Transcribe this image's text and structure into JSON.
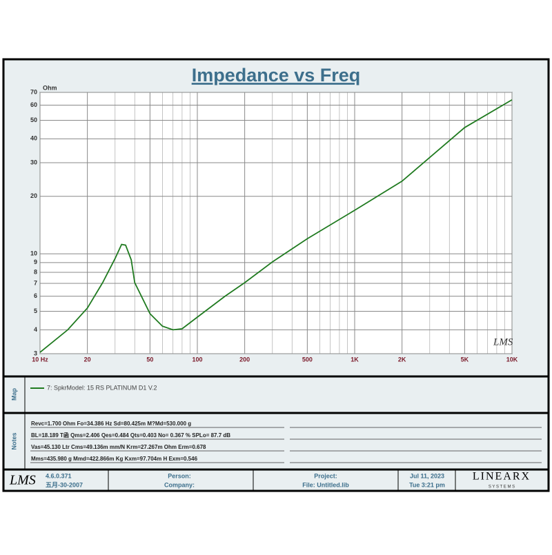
{
  "chart_data": {
    "type": "line",
    "title": "Impedance vs Freq",
    "y_unit": "Ohm",
    "xscale": "log",
    "yscale": "log",
    "grid": true,
    "xlim": [
      10,
      10000
    ],
    "ylim": [
      3,
      70
    ],
    "xticks": [
      {
        "value": 10,
        "label": "10 Hz"
      },
      20,
      50,
      100,
      200,
      500,
      {
        "value": 1000,
        "label": "1K"
      },
      {
        "value": 2000,
        "label": "2K"
      },
      {
        "value": 5000,
        "label": "5K"
      },
      {
        "value": 10000,
        "label": "10K"
      }
    ],
    "xgrid_minor": [
      30,
      40,
      60,
      70,
      80,
      90,
      300,
      400,
      600,
      700,
      800,
      900,
      3000,
      4000,
      6000,
      7000,
      8000,
      9000
    ],
    "yticks": [
      3,
      4,
      5,
      6,
      7,
      8,
      9,
      10,
      20,
      30,
      40,
      50,
      60,
      70
    ],
    "x": [
      10,
      15,
      20,
      25,
      30,
      33,
      35,
      38,
      40,
      50,
      60,
      70,
      80,
      100,
      150,
      200,
      300,
      500,
      1000,
      2000,
      5000,
      10000
    ],
    "series": [
      {
        "name": "7: SpkrModel: 15 RS PLATINUM D1 V.2",
        "color": "#1f7a1f",
        "values": [
          3.05,
          4.0,
          5.2,
          7.06,
          9.45,
          11.2,
          11.1,
          9.3,
          7.06,
          4.86,
          4.18,
          4.0,
          4.05,
          4.66,
          6.0,
          7.06,
          9.07,
          12.0,
          16.9,
          24,
          45.8,
          64
        ]
      }
    ]
  },
  "watermark": "LMS",
  "map_label": "Map",
  "notes_label": "Notes",
  "notes": [
    "Revc=1.700 Ohm  Fo=34.386 Hz  Sd=80.425m M?Md=530.000 g",
    "BL=18.189 T函  Qms=2.406  Qes=0.484  Qts=0.403  No= 0.367 %  SPLo= 87.7 dB",
    "Vas=45.130 Ltr  Cms=49.136m mm/N  Krm=27.267m Ohm  Erm=0.678",
    "Mms=435.980 g  Mmd=422.866m Kg  Kxm=97.704m H  Exm=0.546"
  ],
  "footer": {
    "logo": "LMS",
    "version": "4.6.0.371",
    "date_built": "五月-30-2007",
    "person": "Person:",
    "company": "Company:",
    "project": "Project:",
    "file": "File: Untitled.lib",
    "date": "Jul 11, 2023",
    "time": "Tue  3:21 pm",
    "brand": "LINEARX",
    "brand_sub": "S Y S T E M S"
  }
}
